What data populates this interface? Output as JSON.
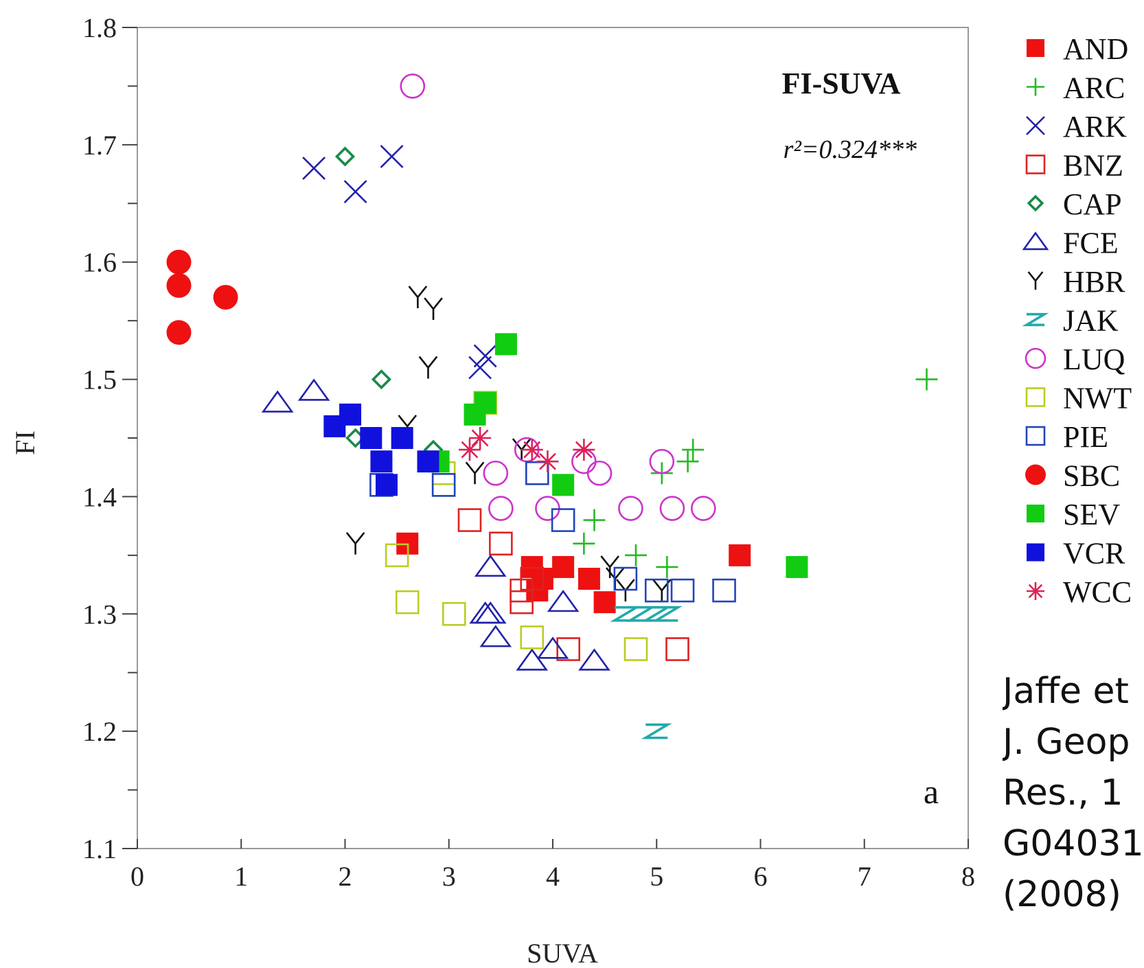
{
  "chart_data": {
    "type": "scatter",
    "title": "FI-SUVA",
    "annotation": "r²=0.324***",
    "panel_label": "a",
    "xlabel": "SUVA",
    "ylabel": "FI",
    "xlim": [
      0,
      8
    ],
    "ylim": [
      1.1,
      1.8
    ],
    "x_ticks": [
      "0",
      "1",
      "2",
      "3",
      "4",
      "5",
      "6",
      "7",
      "8"
    ],
    "y_ticks": [
      "1.1",
      "1.2",
      "1.3",
      "1.4",
      "1.5",
      "1.6",
      "1.7",
      "1.8"
    ],
    "grid": false,
    "legend_position": "right",
    "series": [
      {
        "name": "AND",
        "marker": "filled-square",
        "color": "#ee1111",
        "points": [
          [
            2.6,
            1.36
          ],
          [
            3.8,
            1.34
          ],
          [
            3.85,
            1.32
          ],
          [
            3.9,
            1.33
          ],
          [
            4.1,
            1.34
          ],
          [
            4.35,
            1.33
          ],
          [
            4.5,
            1.31
          ],
          [
            5.8,
            1.35
          ]
        ]
      },
      {
        "name": "ARC",
        "marker": "plus",
        "color": "#22bb22",
        "points": [
          [
            4.3,
            1.36
          ],
          [
            4.4,
            1.38
          ],
          [
            4.8,
            1.35
          ],
          [
            5.05,
            1.42
          ],
          [
            5.1,
            1.34
          ],
          [
            5.3,
            1.43
          ],
          [
            5.35,
            1.44
          ],
          [
            7.6,
            1.5
          ]
        ]
      },
      {
        "name": "ARK",
        "marker": "cross",
        "color": "#2222aa",
        "points": [
          [
            1.7,
            1.68
          ],
          [
            2.1,
            1.66
          ],
          [
            2.45,
            1.69
          ],
          [
            3.3,
            1.51
          ],
          [
            3.35,
            1.52
          ]
        ]
      },
      {
        "name": "BNZ",
        "marker": "open-square",
        "color": "#dd2222",
        "points": [
          [
            3.2,
            1.38
          ],
          [
            3.5,
            1.36
          ],
          [
            3.7,
            1.32
          ],
          [
            3.7,
            1.31
          ],
          [
            3.8,
            1.33
          ],
          [
            4.15,
            1.27
          ],
          [
            5.2,
            1.27
          ]
        ]
      },
      {
        "name": "CAP",
        "marker": "open-diamond",
        "color": "#1a8a4a",
        "points": [
          [
            2.0,
            1.69
          ],
          [
            2.35,
            1.5
          ],
          [
            2.1,
            1.45
          ],
          [
            2.85,
            1.44
          ]
        ]
      },
      {
        "name": "FCE",
        "marker": "open-triangle",
        "color": "#2222aa",
        "points": [
          [
            1.35,
            1.48
          ],
          [
            1.7,
            1.49
          ],
          [
            3.4,
            1.34
          ],
          [
            3.35,
            1.3
          ],
          [
            3.4,
            1.3
          ],
          [
            3.45,
            1.28
          ],
          [
            3.8,
            1.26
          ],
          [
            4.0,
            1.27
          ],
          [
            4.1,
            1.31
          ],
          [
            4.4,
            1.26
          ]
        ]
      },
      {
        "name": "HBR",
        "marker": "y",
        "color": "#111111",
        "points": [
          [
            2.7,
            1.57
          ],
          [
            2.85,
            1.56
          ],
          [
            2.8,
            1.51
          ],
          [
            2.6,
            1.46
          ],
          [
            3.25,
            1.42
          ],
          [
            3.7,
            1.44
          ],
          [
            2.1,
            1.36
          ],
          [
            4.55,
            1.34
          ],
          [
            4.6,
            1.33
          ],
          [
            4.7,
            1.32
          ],
          [
            5.05,
            1.32
          ]
        ]
      },
      {
        "name": "JAK",
        "marker": "z",
        "color": "#22aaaa",
        "points": [
          [
            4.7,
            1.3
          ],
          [
            4.85,
            1.3
          ],
          [
            5.0,
            1.3
          ],
          [
            5.1,
            1.3
          ],
          [
            5.0,
            1.2
          ]
        ]
      },
      {
        "name": "LUQ",
        "marker": "open-circle",
        "color": "#cc33cc",
        "points": [
          [
            2.65,
            1.75
          ],
          [
            3.45,
            1.42
          ],
          [
            3.5,
            1.39
          ],
          [
            3.75,
            1.44
          ],
          [
            3.95,
            1.39
          ],
          [
            4.3,
            1.43
          ],
          [
            4.45,
            1.42
          ],
          [
            4.75,
            1.39
          ],
          [
            5.05,
            1.43
          ],
          [
            5.15,
            1.39
          ],
          [
            5.45,
            1.39
          ]
        ]
      },
      {
        "name": "NWT",
        "marker": "open-square",
        "color": "#bbcc22",
        "points": [
          [
            3.35,
            1.48
          ],
          [
            2.5,
            1.35
          ],
          [
            2.6,
            1.31
          ],
          [
            3.05,
            1.3
          ],
          [
            3.8,
            1.28
          ],
          [
            4.8,
            1.27
          ],
          [
            2.95,
            1.41
          ],
          [
            2.95,
            1.42
          ]
        ]
      },
      {
        "name": "PIE",
        "marker": "open-square",
        "color": "#2244bb",
        "points": [
          [
            2.35,
            1.41
          ],
          [
            2.95,
            1.41
          ],
          [
            3.85,
            1.42
          ],
          [
            4.1,
            1.38
          ],
          [
            4.7,
            1.33
          ],
          [
            5.0,
            1.32
          ],
          [
            5.25,
            1.32
          ],
          [
            5.65,
            1.32
          ]
        ]
      },
      {
        "name": "SBC",
        "marker": "filled-circle",
        "color": "#ee1111",
        "points": [
          [
            0.4,
            1.6
          ],
          [
            0.4,
            1.58
          ],
          [
            0.4,
            1.54
          ],
          [
            0.85,
            1.57
          ]
        ]
      },
      {
        "name": "SEV",
        "marker": "filled-square",
        "color": "#11cc11",
        "points": [
          [
            3.55,
            1.53
          ],
          [
            3.25,
            1.47
          ],
          [
            3.35,
            1.48
          ],
          [
            2.9,
            1.43
          ],
          [
            4.1,
            1.41
          ],
          [
            6.35,
            1.34
          ]
        ]
      },
      {
        "name": "VCR",
        "marker": "filled-square",
        "color": "#1111dd",
        "points": [
          [
            1.9,
            1.46
          ],
          [
            2.05,
            1.47
          ],
          [
            2.25,
            1.45
          ],
          [
            2.35,
            1.43
          ],
          [
            2.4,
            1.41
          ],
          [
            2.55,
            1.45
          ],
          [
            2.8,
            1.43
          ]
        ]
      },
      {
        "name": "WCC",
        "marker": "asterisk",
        "color": "#dd2255",
        "points": [
          [
            3.2,
            1.44
          ],
          [
            3.3,
            1.45
          ],
          [
            3.8,
            1.44
          ],
          [
            3.95,
            1.43
          ],
          [
            4.3,
            1.44
          ]
        ]
      }
    ]
  },
  "citation_lines": [
    "Jaffe et",
    "J. Geop",
    "Res.,  1",
    "G04031",
    "(2008)"
  ]
}
